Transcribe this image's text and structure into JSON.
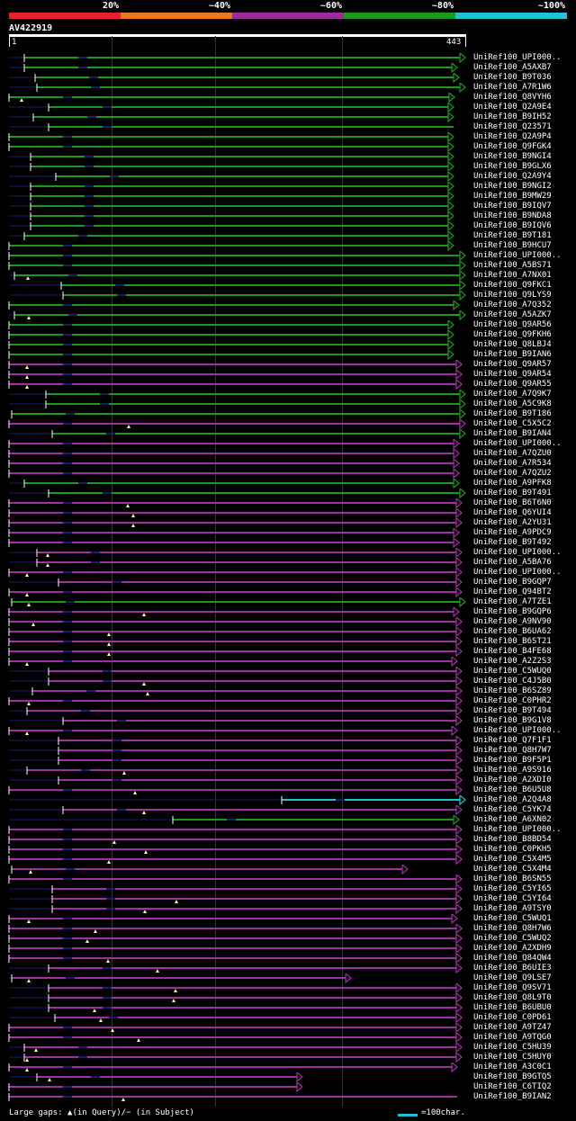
{
  "legend": {
    "labels": [
      "20%",
      "~40%",
      "~60%",
      "~80%",
      "~100%"
    ],
    "colors": [
      "#e8202a",
      "#e87722",
      "#9b2a9b",
      "#1a9a1a",
      "#22c1d6"
    ]
  },
  "query": {
    "name": "AV422919",
    "start": "1",
    "end": "443"
  },
  "footer": {
    "gaps_text": "Large gaps: ▲(in Query)/− (in Subject)",
    "scale_text": "=100char."
  },
  "colors": {
    "green": "#1a9a1a",
    "purple": "#a030a0",
    "cyan": "#22c1d6",
    "navy": "#1a1a6a",
    "gapmark": "#ffff99"
  },
  "hits": [
    {
      "label": "UniRef100_UPI000..",
      "color": "green",
      "s": 17,
      "e": 507,
      "arrow": true
    },
    {
      "label": "UniRef100_A5AXB7",
      "color": "green",
      "s": 17,
      "e": 498,
      "arrow": true
    },
    {
      "label": "UniRef100_B9T036",
      "color": "green",
      "s": 29,
      "e": 500,
      "arrow": true
    },
    {
      "label": "UniRef100_A7R1W6",
      "color": "green",
      "s": 31,
      "e": 507,
      "arrow": true
    },
    {
      "label": "UniRef100_Q8VYH6",
      "color": "green",
      "s": 0,
      "e": 495,
      "arrow": true,
      "gap": 14
    },
    {
      "label": "UniRef100_Q2A9E4",
      "color": "green",
      "s": 44,
      "e": 494,
      "arrow": true
    },
    {
      "label": "UniRef100_B9IH52",
      "color": "green",
      "s": 27,
      "e": 494,
      "arrow": true
    },
    {
      "label": "UniRef100_Q23571",
      "color": "green",
      "s": 44,
      "e": 494,
      "arrow": false
    },
    {
      "label": "UniRef100_Q2A9P4",
      "color": "green",
      "s": 0,
      "e": 494,
      "arrow": true
    },
    {
      "label": "UniRef100_Q9FGK4",
      "color": "green",
      "s": 0,
      "e": 494,
      "arrow": true
    },
    {
      "label": "UniRef100_B9NGI4",
      "color": "green",
      "s": 24,
      "e": 494,
      "arrow": true
    },
    {
      "label": "UniRef100_B9GLX6",
      "color": "green",
      "s": 24,
      "e": 494,
      "arrow": true
    },
    {
      "label": "UniRef100_Q2A9Y4",
      "color": "green",
      "s": 52,
      "e": 494,
      "arrow": true
    },
    {
      "label": "UniRef100_B9NGI2",
      "color": "green",
      "s": 24,
      "e": 494,
      "arrow": true
    },
    {
      "label": "UniRef100_B9MW29",
      "color": "green",
      "s": 24,
      "e": 494,
      "arrow": true
    },
    {
      "label": "UniRef100_B9IQV7",
      "color": "green",
      "s": 24,
      "e": 494,
      "arrow": true
    },
    {
      "label": "UniRef100_B9NDA8",
      "color": "green",
      "s": 24,
      "e": 494,
      "arrow": true
    },
    {
      "label": "UniRef100_B9IQV6",
      "color": "green",
      "s": 24,
      "e": 494,
      "arrow": true
    },
    {
      "label": "UniRef100_B9T181",
      "color": "green",
      "s": 17,
      "e": 494,
      "arrow": true
    },
    {
      "label": "UniRef100_B9HCU7",
      "color": "green",
      "s": 0,
      "e": 494,
      "arrow": true
    },
    {
      "label": "UniRef100_UPI000..",
      "color": "green",
      "s": 0,
      "e": 507,
      "arrow": true
    },
    {
      "label": "UniRef100_A5BS71",
      "color": "green",
      "s": 0,
      "e": 507,
      "arrow": true
    },
    {
      "label": "UniRef100_A7NX01",
      "color": "green",
      "s": 6,
      "e": 507,
      "arrow": true,
      "gap": 21
    },
    {
      "label": "UniRef100_Q9FKC1",
      "color": "green",
      "s": 58,
      "e": 507,
      "arrow": true
    },
    {
      "label": "UniRef100_Q9LYS9",
      "color": "green",
      "s": 60,
      "e": 507,
      "arrow": true
    },
    {
      "label": "UniRef100_A7Q352",
      "color": "green",
      "s": 0,
      "e": 500,
      "arrow": true
    },
    {
      "label": "UniRef100_A5AZK7",
      "color": "green",
      "s": 6,
      "e": 507,
      "arrow": true,
      "gap": 22
    },
    {
      "label": "UniRef100_Q9AR56",
      "color": "green",
      "s": 0,
      "e": 494,
      "arrow": true
    },
    {
      "label": "UniRef100_Q9FKH6",
      "color": "green",
      "s": 0,
      "e": 494,
      "arrow": true
    },
    {
      "label": "UniRef100_Q8LBJ4",
      "color": "green",
      "s": 0,
      "e": 494,
      "arrow": true
    },
    {
      "label": "UniRef100_B9IAN6",
      "color": "green",
      "s": 0,
      "e": 494,
      "arrow": true
    },
    {
      "label": "UniRef100_Q9AR57",
      "color": "purple",
      "s": 0,
      "e": 503,
      "arrow": true,
      "gap": 20
    },
    {
      "label": "UniRef100_Q9AR54",
      "color": "purple",
      "s": 0,
      "e": 503,
      "arrow": true,
      "gap": 20
    },
    {
      "label": "UniRef100_Q9AR55",
      "color": "purple",
      "s": 0,
      "e": 503,
      "arrow": true,
      "gap": 20
    },
    {
      "label": "UniRef100_A7Q9K7",
      "color": "green",
      "s": 41,
      "e": 507,
      "arrow": true
    },
    {
      "label": "UniRef100_A5C9K8",
      "color": "green",
      "s": 41,
      "e": 507,
      "arrow": true
    },
    {
      "label": "UniRef100_B9T186",
      "color": "green",
      "s": 3,
      "e": 507,
      "arrow": true
    },
    {
      "label": "UniRef100_C5X5C2",
      "color": "purple",
      "s": 0,
      "e": 507,
      "arrow": true,
      "gap": 133
    },
    {
      "label": "UniRef100_B9IAN4",
      "color": "green",
      "s": 48,
      "e": 507,
      "arrow": true
    },
    {
      "label": "UniRef100_UPI000..",
      "color": "purple",
      "s": 0,
      "e": 500,
      "arrow": true
    },
    {
      "label": "UniRef100_A7QZU0",
      "color": "purple",
      "s": 0,
      "e": 500,
      "arrow": true
    },
    {
      "label": "UniRef100_A7R534",
      "color": "purple",
      "s": 0,
      "e": 500,
      "arrow": true
    },
    {
      "label": "UniRef100_A7QZU2",
      "color": "purple",
      "s": 0,
      "e": 500,
      "arrow": true
    },
    {
      "label": "UniRef100_A9PFK8",
      "color": "green",
      "s": 17,
      "e": 500,
      "arrow": true
    },
    {
      "label": "UniRef100_B9T491",
      "color": "green",
      "s": 44,
      "e": 507,
      "arrow": true
    },
    {
      "label": "UniRef100_B6T6N0",
      "color": "purple",
      "s": 0,
      "e": 503,
      "arrow": true,
      "gap": 132
    },
    {
      "label": "UniRef100_Q6YUI4",
      "color": "purple",
      "s": 0,
      "e": 503,
      "arrow": true,
      "gap": 138
    },
    {
      "label": "UniRef100_A2YU31",
      "color": "purple",
      "s": 0,
      "e": 503,
      "arrow": true,
      "gap": 138
    },
    {
      "label": "UniRef100_A9PDC9",
      "color": "purple",
      "s": 0,
      "e": 500,
      "arrow": true
    },
    {
      "label": "UniRef100_B9T492",
      "color": "purple",
      "s": 0,
      "e": 500,
      "arrow": true
    },
    {
      "label": "UniRef100_UPI000..",
      "color": "purple",
      "s": 31,
      "e": 503,
      "arrow": true,
      "gap": 43
    },
    {
      "label": "UniRef100_A5BA76",
      "color": "purple",
      "s": 31,
      "e": 503,
      "arrow": true,
      "gap": 43
    },
    {
      "label": "UniRef100_UPI000..",
      "color": "purple",
      "s": 0,
      "e": 503,
      "arrow": true,
      "gap": 20
    },
    {
      "label": "UniRef100_B9GQP7",
      "color": "purple",
      "s": 55,
      "e": 503,
      "arrow": true
    },
    {
      "label": "UniRef100_Q94BT2",
      "color": "purple",
      "s": 0,
      "e": 503,
      "arrow": true,
      "gap": 20
    },
    {
      "label": "UniRef100_A7TZE1",
      "color": "green",
      "s": 3,
      "e": 507,
      "arrow": true,
      "gap": 22
    },
    {
      "label": "UniRef100_B9GQP6",
      "color": "purple",
      "s": 0,
      "e": 500,
      "arrow": true,
      "gap": 150
    },
    {
      "label": "UniRef100_A9NV90",
      "color": "purple",
      "s": 0,
      "e": 503,
      "arrow": true,
      "gap": 27
    },
    {
      "label": "UniRef100_B6UA62",
      "color": "purple",
      "s": 0,
      "e": 503,
      "arrow": true,
      "gap": 111
    },
    {
      "label": "UniRef100_B6ST21",
      "color": "purple",
      "s": 0,
      "e": 503,
      "arrow": true,
      "gap": 111
    },
    {
      "label": "UniRef100_B4FE68",
      "color": "purple",
      "s": 0,
      "e": 503,
      "arrow": true,
      "gap": 111
    },
    {
      "label": "UniRef100_A2Z2S3",
      "color": "purple",
      "s": 0,
      "e": 498,
      "arrow": true,
      "gap": 20
    },
    {
      "label": "UniRef100_C5WUQ0",
      "color": "purple",
      "s": 44,
      "e": 503,
      "arrow": true
    },
    {
      "label": "UniRef100_C4J5B0",
      "color": "purple",
      "s": 44,
      "e": 503,
      "arrow": true,
      "gap": 150
    },
    {
      "label": "UniRef100_B6SZ89",
      "color": "purple",
      "s": 26,
      "e": 503,
      "arrow": true,
      "gap": 154
    },
    {
      "label": "UniRef100_C0PHR2",
      "color": "purple",
      "s": 0,
      "e": 503,
      "arrow": true,
      "gap": 22
    },
    {
      "label": "UniRef100_B9T494",
      "color": "purple",
      "s": 20,
      "e": 503,
      "arrow": true
    },
    {
      "label": "UniRef100_B9G1V8",
      "color": "purple",
      "s": 60,
      "e": 503,
      "arrow": true
    },
    {
      "label": "UniRef100_UPI000..",
      "color": "purple",
      "s": 0,
      "e": 498,
      "arrow": true,
      "gap": 20
    },
    {
      "label": "UniRef100_Q7F1F1",
      "color": "purple",
      "s": 55,
      "e": 503,
      "arrow": true
    },
    {
      "label": "UniRef100_Q8H7W7",
      "color": "purple",
      "s": 55,
      "e": 503,
      "arrow": true
    },
    {
      "label": "UniRef100_B9F5P1",
      "color": "purple",
      "s": 55,
      "e": 503,
      "arrow": true
    },
    {
      "label": "UniRef100_A9S916",
      "color": "purple",
      "s": 20,
      "e": 503,
      "arrow": true,
      "gap": 128
    },
    {
      "label": "UniRef100_A2XDI0",
      "color": "purple",
      "s": 55,
      "e": 503,
      "arrow": true
    },
    {
      "label": "UniRef100_B6U5U8",
      "color": "purple",
      "s": 0,
      "e": 503,
      "arrow": true,
      "gap": 140
    },
    {
      "label": "UniRef100_A2Q4A8",
      "color": "cyan",
      "s": 303,
      "e": 507,
      "arrow": true
    },
    {
      "label": "UniRef100_C5YK74",
      "color": "purple",
      "s": 60,
      "e": 503,
      "arrow": true,
      "gap": 150
    },
    {
      "label": "UniRef100_A6XN02",
      "color": "green",
      "s": 182,
      "e": 500,
      "arrow": true
    },
    {
      "label": "UniRef100_UPI000..",
      "color": "purple",
      "s": 0,
      "e": 503,
      "arrow": true
    },
    {
      "label": "UniRef100_B8BD54",
      "color": "purple",
      "s": 0,
      "e": 503,
      "arrow": true,
      "gap": 117
    },
    {
      "label": "UniRef100_C0PKH5",
      "color": "purple",
      "s": 0,
      "e": 503,
      "arrow": true,
      "gap": 152
    },
    {
      "label": "UniRef100_C5X4M5",
      "color": "purple",
      "s": 0,
      "e": 503,
      "arrow": true,
      "gap": 111
    },
    {
      "label": "UniRef100_C5X4M4",
      "color": "purple",
      "s": 3,
      "e": 443,
      "arrow": true,
      "gap": 24
    },
    {
      "label": "UniRef100_B6SN55",
      "color": "purple",
      "s": 0,
      "e": 503,
      "arrow": true
    },
    {
      "label": "UniRef100_C5YI65",
      "color": "purple",
      "s": 48,
      "e": 503,
      "arrow": true
    },
    {
      "label": "UniRef100_C5YI64",
      "color": "purple",
      "s": 48,
      "e": 503,
      "arrow": true,
      "gap": 186
    },
    {
      "label": "UniRef100_A9TSY0",
      "color": "purple",
      "s": 48,
      "e": 503,
      "arrow": true,
      "gap": 151
    },
    {
      "label": "UniRef100_C5WUQ1",
      "color": "purple",
      "s": 0,
      "e": 498,
      "arrow": true,
      "gap": 22
    },
    {
      "label": "UniRef100_Q8H7W6",
      "color": "purple",
      "s": 0,
      "e": 503,
      "arrow": true,
      "gap": 96
    },
    {
      "label": "UniRef100_C5WUQ2",
      "color": "purple",
      "s": 0,
      "e": 503,
      "arrow": true,
      "gap": 87
    },
    {
      "label": "UniRef100_A2XDH9",
      "color": "purple",
      "s": 0,
      "e": 503,
      "arrow": true
    },
    {
      "label": "UniRef100_Q84QW4",
      "color": "purple",
      "s": 0,
      "e": 503,
      "arrow": true,
      "gap": 110
    },
    {
      "label": "UniRef100_B6UIE3",
      "color": "purple",
      "s": 44,
      "e": 503,
      "arrow": true,
      "gap": 165
    },
    {
      "label": "UniRef100_Q9LSE7",
      "color": "purple",
      "s": 3,
      "e": 380,
      "arrow": true,
      "gap": 22
    },
    {
      "label": "UniRef100_Q9SV71",
      "color": "purple",
      "s": 44,
      "e": 503,
      "arrow": true,
      "gap": 185
    },
    {
      "label": "UniRef100_Q8L9T0",
      "color": "purple",
      "s": 44,
      "e": 503,
      "arrow": true,
      "gap": 183
    },
    {
      "label": "UniRef100_B6UBU0",
      "color": "purple",
      "s": 44,
      "e": 503,
      "arrow": true,
      "gap": 95
    },
    {
      "label": "UniRef100_C0PD61",
      "color": "purple",
      "s": 51,
      "e": 503,
      "arrow": true,
      "gap": 102
    },
    {
      "label": "UniRef100_A9TZ47",
      "color": "purple",
      "s": 0,
      "e": 503,
      "arrow": true,
      "gap": 115
    },
    {
      "label": "UniRef100_A9TQG0",
      "color": "purple",
      "s": 0,
      "e": 503,
      "arrow": true,
      "gap": 144
    },
    {
      "label": "UniRef100_C5HU39",
      "color": "purple",
      "s": 17,
      "e": 503,
      "arrow": true,
      "gap": 30
    },
    {
      "label": "UniRef100_C5HUY0",
      "color": "purple",
      "s": 17,
      "e": 503,
      "arrow": true,
      "gap": 20
    },
    {
      "label": "UniRef100_A3C0C1",
      "color": "purple",
      "s": 0,
      "e": 498,
      "arrow": true,
      "gap": 20
    },
    {
      "label": "UniRef100_B9GTQ5",
      "color": "purple",
      "s": 31,
      "e": 326,
      "arrow": true,
      "gap": 45
    },
    {
      "label": "UniRef100_C6TIQ2",
      "color": "purple",
      "s": 0,
      "e": 326,
      "arrow": true
    },
    {
      "label": "UniRef100_B9IAN2",
      "color": "purple",
      "s": 0,
      "e": 498,
      "arrow": false,
      "gap": 127
    }
  ]
}
